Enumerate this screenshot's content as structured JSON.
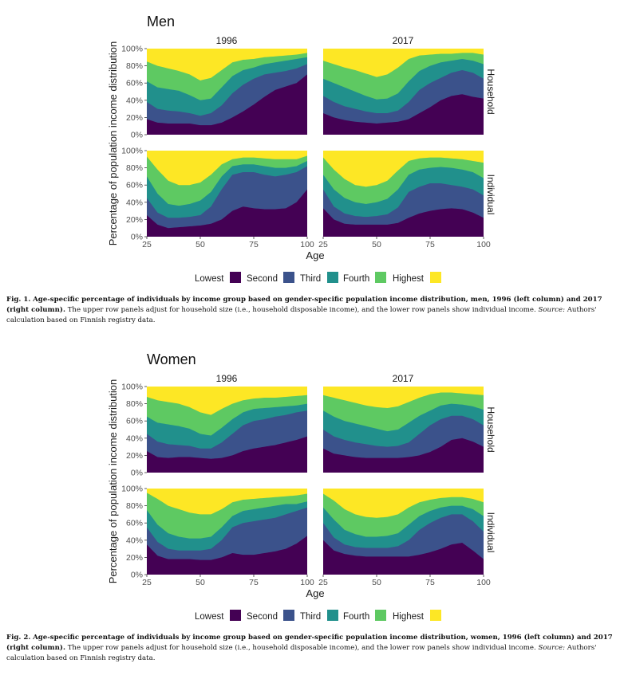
{
  "colors": {
    "Lowest": "#440154",
    "Second": "#3b528b",
    "Third": "#21908c",
    "Fourth": "#5ec962",
    "Highest": "#fde725"
  },
  "figures": [
    {
      "title": "Men",
      "col_labels": [
        "1996",
        "2017"
      ],
      "row_labels": [
        "Household",
        "Individual"
      ],
      "ylabel": "Percentage of population income distribution",
      "xlabel": "Age",
      "yticks": [
        "0%",
        "20%",
        "40%",
        "60%",
        "80%",
        "100%"
      ],
      "xticks": [
        "25",
        "50",
        "75",
        "100"
      ],
      "legend": [
        "Lowest",
        "Second",
        "Third",
        "Fourth",
        "Highest"
      ],
      "caption_label": "Fig. 1.",
      "caption_bold": "Age-specific percentage of individuals by income group based on gender-specific population income distribution, men, 1996 (left column) and 2017 (right column).",
      "caption_text": "The upper row panels adjust for household size (i.e., household disposable income), and the lower row panels show individual income.",
      "caption_source_label": "Source:",
      "caption_source": "Authors' calculation based on Finnish registry data."
    },
    {
      "title": "Women",
      "col_labels": [
        "1996",
        "2017"
      ],
      "row_labels": [
        "Household",
        "Individual"
      ],
      "ylabel": "Percentage of population income distribution",
      "xlabel": "Age",
      "yticks": [
        "0%",
        "20%",
        "40%",
        "60%",
        "80%",
        "100%"
      ],
      "xticks": [
        "25",
        "50",
        "75",
        "100"
      ],
      "legend": [
        "Lowest",
        "Second",
        "Third",
        "Fourth",
        "Highest"
      ],
      "caption_label": "Fig. 2.",
      "caption_bold": "Age-specific percentage of individuals by income group based on gender-specific population income distribution, women, 1996 (left column) and 2017 (right column).",
      "caption_text": "The upper row panels adjust for household size (i.e., household disposable income), and the lower row panels show individual income.",
      "caption_source_label": "Source:",
      "caption_source": "Authors' calculation based on Finnish registry data."
    }
  ],
  "chart_data": [
    {
      "type": "area",
      "title": "Men",
      "xlabel": "Age",
      "ylabel": "Percentage of population income distribution",
      "xlim": [
        25,
        100
      ],
      "ylim": [
        0,
        100
      ],
      "series_names": [
        "Lowest",
        "Second",
        "Third",
        "Fourth",
        "Highest"
      ],
      "x": [
        25,
        30,
        35,
        40,
        45,
        50,
        55,
        60,
        65,
        70,
        75,
        80,
        85,
        90,
        95,
        100
      ],
      "panels": [
        {
          "column": "1996",
          "row": "Household",
          "cumulative": {
            "Lowest": [
              18,
              14,
              13,
              13,
              13,
              11,
              11,
              14,
              20,
              27,
              35,
              44,
              52,
              56,
              60,
              70
            ],
            "Second": [
              38,
              30,
              28,
              27,
              25,
              22,
              25,
              34,
              48,
              58,
              65,
              70,
              72,
              74,
              77,
              82
            ],
            "Third": [
              62,
              55,
              53,
              51,
              46,
              40,
              42,
              55,
              68,
              75,
              78,
              82,
              84,
              86,
              88,
              90
            ],
            "Fourth": [
              85,
              80,
              77,
              74,
              70,
              63,
              66,
              75,
              84,
              87,
              88,
              90,
              91,
              92,
              93,
              95
            ]
          }
        },
        {
          "column": "2017",
          "row": "Household",
          "cumulative": {
            "Lowest": [
              25,
              20,
              17,
              15,
              14,
              13,
              14,
              15,
              18,
              25,
              32,
              40,
              45,
              47,
              44,
              42
            ],
            "Second": [
              45,
              38,
              33,
              30,
              27,
              25,
              25,
              28,
              38,
              52,
              60,
              66,
              72,
              75,
              72,
              65
            ],
            "Third": [
              65,
              60,
              55,
              50,
              45,
              41,
              42,
              48,
              62,
              74,
              80,
              84,
              86,
              88,
              86,
              82
            ],
            "Fourth": [
              86,
              82,
              78,
              75,
              71,
              67,
              70,
              78,
              88,
              92,
              93,
              94,
              94,
              95,
              95,
              93
            ]
          }
        },
        {
          "column": "1996",
          "row": "Individual",
          "cumulative": {
            "Lowest": [
              25,
              14,
              10,
              11,
              12,
              13,
              15,
              20,
              30,
              35,
              33,
              32,
              32,
              33,
              40,
              55
            ],
            "Second": [
              45,
              28,
              22,
              22,
              23,
              25,
              35,
              55,
              72,
              75,
              75,
              72,
              70,
              72,
              75,
              82
            ],
            "Third": [
              70,
              50,
              38,
              36,
              38,
              42,
              52,
              70,
              82,
              84,
              84,
              82,
              80,
              80,
              82,
              88
            ],
            "Fourth": [
              93,
              78,
              65,
              60,
              60,
              63,
              72,
              84,
              90,
              92,
              92,
              91,
              90,
              90,
              90,
              94
            ]
          }
        },
        {
          "column": "2017",
          "row": "Individual",
          "cumulative": {
            "Lowest": [
              33,
              20,
              15,
              14,
              14,
              14,
              14,
              16,
              22,
              27,
              30,
              32,
              33,
              32,
              28,
              22
            ],
            "Second": [
              55,
              35,
              27,
              24,
              23,
              24,
              26,
              34,
              52,
              58,
              62,
              62,
              60,
              58,
              55,
              48
            ],
            "Third": [
              72,
              55,
              45,
              40,
              38,
              40,
              44,
              55,
              72,
              78,
              80,
              81,
              80,
              78,
              75,
              68
            ],
            "Fourth": [
              92,
              78,
              67,
              60,
              58,
              60,
              65,
              77,
              88,
              91,
              92,
              92,
              91,
              90,
              88,
              86
            ]
          }
        }
      ]
    },
    {
      "type": "area",
      "title": "Women",
      "xlabel": "Age",
      "ylabel": "Percentage of population income distribution",
      "xlim": [
        25,
        100
      ],
      "ylim": [
        0,
        100
      ],
      "series_names": [
        "Lowest",
        "Second",
        "Third",
        "Fourth",
        "Highest"
      ],
      "x": [
        25,
        30,
        35,
        40,
        45,
        50,
        55,
        60,
        65,
        70,
        75,
        80,
        85,
        90,
        95,
        100
      ],
      "panels": [
        {
          "column": "1996",
          "row": "Household",
          "cumulative": {
            "Lowest": [
              25,
              18,
              17,
              18,
              18,
              17,
              16,
              17,
              20,
              25,
              28,
              30,
              32,
              35,
              38,
              42
            ],
            "Second": [
              45,
              36,
              33,
              32,
              31,
              28,
              28,
              35,
              45,
              55,
              60,
              62,
              65,
              67,
              70,
              72
            ],
            "Third": [
              65,
              58,
              56,
              54,
              51,
              45,
              43,
              52,
              62,
              70,
              74,
              75,
              76,
              77,
              78,
              80
            ],
            "Fourth": [
              88,
              84,
              82,
              80,
              76,
              70,
              67,
              74,
              80,
              84,
              86,
              87,
              87,
              88,
              89,
              90
            ]
          }
        },
        {
          "column": "2017",
          "row": "Household",
          "cumulative": {
            "Lowest": [
              28,
              22,
              20,
              18,
              17,
              17,
              17,
              17,
              18,
              20,
              24,
              30,
              38,
              40,
              36,
              30
            ],
            "Second": [
              50,
              42,
              38,
              35,
              33,
              31,
              30,
              31,
              35,
              45,
              55,
              62,
              66,
              66,
              62,
              55
            ],
            "Third": [
              72,
              65,
              60,
              57,
              54,
              51,
              48,
              50,
              58,
              66,
              72,
              78,
              80,
              79,
              77,
              73
            ],
            "Fourth": [
              90,
              87,
              84,
              81,
              78,
              76,
              75,
              77,
              82,
              87,
              91,
              93,
              93,
              92,
              91,
              90
            ]
          }
        },
        {
          "column": "1996",
          "row": "Individual",
          "cumulative": {
            "Lowest": [
              35,
              22,
              18,
              18,
              18,
              17,
              17,
              20,
              25,
              23,
              23,
              25,
              27,
              30,
              36,
              45
            ],
            "Second": [
              55,
              38,
              30,
              28,
              28,
              28,
              30,
              40,
              55,
              60,
              62,
              64,
              66,
              70,
              74,
              78
            ],
            "Third": [
              75,
              58,
              48,
              44,
              42,
              42,
              44,
              55,
              68,
              74,
              76,
              78,
              80,
              82,
              82,
              85
            ],
            "Fourth": [
              95,
              88,
              80,
              76,
              72,
              70,
              70,
              76,
              84,
              87,
              88,
              89,
              90,
              91,
              92,
              94
            ]
          }
        },
        {
          "column": "2017",
          "row": "Individual",
          "cumulative": {
            "Lowest": [
              40,
              28,
              24,
              22,
              21,
              21,
              21,
              21,
              21,
              23,
              26,
              30,
              35,
              37,
              28,
              18
            ],
            "Second": [
              60,
              43,
              35,
              32,
              31,
              31,
              31,
              33,
              40,
              52,
              60,
              66,
              70,
              70,
              62,
              50
            ],
            "Third": [
              78,
              64,
              52,
              47,
              44,
              44,
              45,
              48,
              58,
              68,
              74,
              78,
              80,
              80,
              76,
              68
            ],
            "Fourth": [
              94,
              86,
              76,
              70,
              67,
              66,
              67,
              70,
              78,
              84,
              87,
              89,
              90,
              90,
              88,
              84
            ]
          }
        }
      ]
    }
  ]
}
